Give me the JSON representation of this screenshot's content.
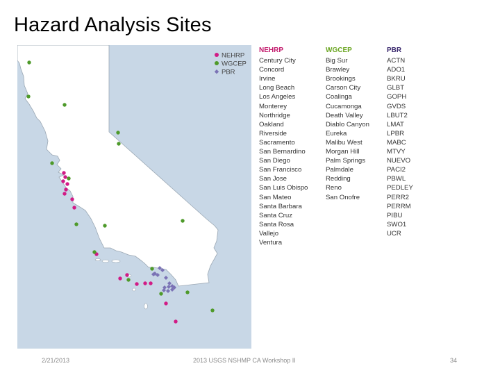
{
  "slide": {
    "title": "Hazard Analysis Sites"
  },
  "colors": {
    "nehrp": "#d11b86",
    "wgcep": "#4e9a2a",
    "pbr": "#7b73b5",
    "ocean": "#c8d7e6",
    "land": "#ffffff",
    "border": "#9aa7b3"
  },
  "map": {
    "legend": [
      {
        "key": "nehrp",
        "label": "NEHRP",
        "icon": "pink-circle-icon"
      },
      {
        "key": "wgcep",
        "label": "WGCEP",
        "icon": "green-circle-icon"
      },
      {
        "key": "pbr",
        "label": "PBR",
        "icon": "purple-diamond-icon"
      }
    ]
  },
  "sites_table": {
    "nehrp": {
      "header": "NEHRP",
      "sites": [
        "Century City",
        "Concord",
        "Irvine",
        "Long Beach",
        "Los Angeles",
        "Monterey",
        "Northridge",
        "Oakland",
        "Riverside",
        "Sacramento",
        "San Bernardino",
        "San Diego",
        "San Francisco",
        "San Jose",
        "San Luis Obispo",
        "San Mateo",
        "Santa Barbara",
        "Santa Cruz",
        "Santa Rosa",
        "Vallejo",
        "Ventura"
      ]
    },
    "wgcep": {
      "header": "WGCEP",
      "sites": [
        "Big Sur",
        "Brawley",
        "Brookings",
        "Carson City",
        "Coalinga",
        "Cucamonga",
        "Death Valley",
        "Diablo Canyon",
        "Eureka",
        "Malibu West",
        "Morgan Hill",
        "Palm Springs",
        "Palmdale",
        "Redding",
        "Reno",
        "San Onofre"
      ]
    },
    "pbr": {
      "header": "PBR",
      "sites": [
        "ACTN",
        "ADO1",
        "BKRU",
        "GLBT",
        "GOPH",
        "GVDS",
        "LBUT2",
        "LMAT",
        "LPBR",
        "MABC",
        "MTVY",
        "NUEVO",
        "PACI2",
        "PBWL",
        "PEDLEY",
        "PERR2",
        "PERRM",
        "PIBU",
        "SWO1",
        "UCR"
      ]
    }
  },
  "footer": {
    "date": "2/21/2013",
    "center": "2013 USGS NSHMP CA Workshop II",
    "page": "34"
  }
}
